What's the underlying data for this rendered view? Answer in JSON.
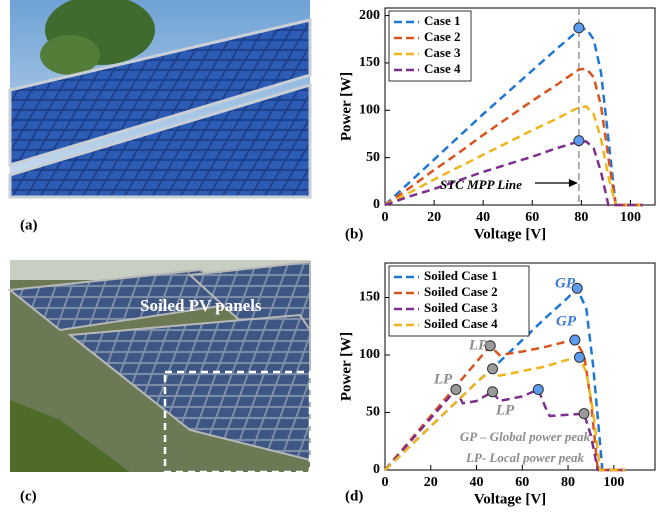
{
  "photos": [
    {
      "label": "(a)"
    },
    {
      "label": "(c)",
      "annotation": "Soiled PV panels"
    }
  ],
  "chart_data": [
    {
      "type": "line",
      "label": "(b)",
      "xlabel": "Voltage [V]",
      "ylabel": "Power [W]",
      "legend": "upper left",
      "grid": false,
      "xlim": [
        0,
        110
      ],
      "ylim": [
        0,
        208
      ],
      "xticks": [
        0,
        20,
        40,
        60,
        80,
        100
      ],
      "yticks": [
        0,
        50,
        100,
        150,
        200
      ],
      "x": [
        0,
        10,
        20,
        30,
        40,
        50,
        60,
        70,
        75,
        79,
        82,
        85,
        88,
        91,
        94,
        100,
        105
      ],
      "series": [
        {
          "name": "Case 1",
          "color": "#1f77d4",
          "values": [
            0,
            24,
            48,
            72,
            96,
            119,
            142,
            165,
            176,
            185,
            186,
            175,
            140,
            70,
            0,
            0,
            0
          ]
        },
        {
          "name": "Case 2",
          "color": "#d9531e",
          "values": [
            0,
            18,
            37,
            55,
            74,
            92,
            110,
            127,
            136,
            143,
            144,
            135,
            105,
            50,
            0,
            0,
            0
          ]
        },
        {
          "name": "Case 3",
          "color": "#f0b41c",
          "values": [
            0,
            13,
            27,
            40,
            53,
            66,
            79,
            91,
            98,
            103,
            104,
            96,
            70,
            30,
            0,
            0,
            0
          ]
        },
        {
          "name": "Case 4",
          "color": "#7e2f8e",
          "values": [
            0,
            9,
            17,
            26,
            35,
            43,
            51,
            60,
            64,
            67,
            67,
            60,
            35,
            0,
            0,
            0,
            0
          ]
        }
      ],
      "markers": [
        {
          "x": 79,
          "y": 187,
          "color": "#5b9bf0"
        },
        {
          "x": 79,
          "y": 68,
          "color": "#5b9bf0"
        }
      ],
      "vline": 79,
      "annotations": [
        {
          "text": "STC MPP Line",
          "color": "#000000"
        }
      ]
    },
    {
      "type": "line",
      "label": "(d)",
      "xlabel": "Voltage [V]",
      "ylabel": "Power [W]",
      "legend": "upper left",
      "grid": false,
      "xlim": [
        0,
        118
      ],
      "ylim": [
        0,
        180
      ],
      "xticks": [
        0,
        20,
        40,
        60,
        80,
        100
      ],
      "yticks": [
        0,
        50,
        100,
        150
      ],
      "series": [
        {
          "name": "Soiled Case 1",
          "color": "#1f77d4",
          "x": [
            0,
            10,
            20,
            30,
            40,
            50,
            60,
            70,
            80,
            84,
            88,
            91,
            95,
            105
          ],
          "values": [
            0,
            19,
            38,
            57,
            76,
            94,
            113,
            132,
            150,
            158,
            140,
            90,
            0,
            0
          ]
        },
        {
          "name": "Soiled Case 2",
          "color": "#d9531e",
          "x": [
            0,
            20,
            40,
            46,
            50,
            60,
            70,
            80,
            83,
            87,
            90,
            93,
            105
          ],
          "values": [
            0,
            47,
            94,
            108,
            100,
            103,
            107,
            112,
            113,
            100,
            60,
            0,
            0
          ]
        },
        {
          "name": "Soiled Case 3",
          "color": "#7e2f8e",
          "x": [
            0,
            20,
            31,
            34,
            40,
            47,
            50,
            60,
            67,
            70,
            72,
            80,
            87,
            90,
            93,
            105
          ],
          "values": [
            0,
            45,
            70,
            58,
            60,
            68,
            60,
            64,
            70,
            55,
            47,
            48,
            49,
            30,
            0,
            0
          ]
        },
        {
          "name": "Soiled Case 4",
          "color": "#f0b41c",
          "x": [
            0,
            20,
            40,
            47,
            50,
            60,
            70,
            80,
            85,
            88,
            91,
            94,
            105
          ],
          "values": [
            0,
            38,
            76,
            88,
            82,
            86,
            90,
            96,
            98,
            85,
            50,
            0,
            0
          ]
        }
      ],
      "markers": [
        {
          "x": 84,
          "y": 158,
          "color": "#5b9bf0"
        },
        {
          "x": 83,
          "y": 113,
          "color": "#5b9bf0"
        },
        {
          "x": 85,
          "y": 98,
          "color": "#5b9bf0"
        },
        {
          "x": 67,
          "y": 70,
          "color": "#5b9bf0"
        },
        {
          "x": 46,
          "y": 108,
          "color": "#9a9a9a"
        },
        {
          "x": 47,
          "y": 88,
          "color": "#9a9a9a"
        },
        {
          "x": 47,
          "y": 68,
          "color": "#9a9a9a"
        },
        {
          "x": 31,
          "y": 70,
          "color": "#9a9a9a"
        },
        {
          "x": 87,
          "y": 49,
          "color": "#9a9a9a"
        }
      ],
      "annotations": [
        {
          "text": "GP",
          "color": "#3c78d8"
        },
        {
          "text": "GP",
          "color": "#3c78d8"
        },
        {
          "text": "LP",
          "color": "#8c8c8c"
        },
        {
          "text": "LP",
          "color": "#8c8c8c"
        },
        {
          "text": "LP",
          "color": "#8c8c8c"
        },
        {
          "text": "GP – Global power peak",
          "color": "#8c8c8c"
        },
        {
          "text": "LP- Local power peak",
          "color": "#8c8c8c"
        }
      ]
    }
  ]
}
